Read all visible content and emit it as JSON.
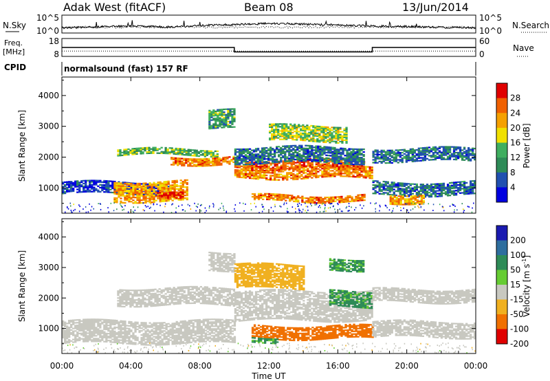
{
  "header": {
    "station": "Adak West (fitACF)",
    "beam": "Beam 08",
    "date": "13/Jun/2014"
  },
  "top_panels": {
    "nsky_label": "N.Sky",
    "nsearch_label": "N.Search",
    "noise_ticks": [
      "10^5",
      "10^0"
    ],
    "freq_label_1": "Freq.",
    "freq_label_2": "[MHz]",
    "freq_ticks": [
      "18",
      "8"
    ],
    "nave_label": "Nave",
    "nave_ticks": [
      "60",
      "0"
    ],
    "cpid_label": "CPID",
    "cpid_text": "normalsound (fast) 157 RF"
  },
  "power_panel": {
    "ylabel": "Slant Range [km]",
    "yticks": [
      "1000",
      "2000",
      "3000",
      "4000"
    ],
    "colorbar_label": "Power [dB]",
    "colorbar_ticks": [
      "4",
      "8",
      "12",
      "16",
      "20",
      "24",
      "28"
    ],
    "colors": [
      "#0000e0",
      "#2050b0",
      "#2e8b57",
      "#3fae5f",
      "#f0e000",
      "#f5a000",
      "#f06000",
      "#e00000"
    ]
  },
  "velocity_panel": {
    "ylabel": "Slant Range [km]",
    "yticks": [
      "1000",
      "2000",
      "3000",
      "4000"
    ],
    "colorbar_label": "Velocity [m s",
    "colorbar_label_sup": "-1",
    "colorbar_label_end": "]",
    "colorbar_ticks": [
      "200",
      "100",
      "50",
      "15",
      "-15",
      "-50",
      "-100",
      "-200"
    ],
    "colors": [
      "#1a1ab0",
      "#2e6e9e",
      "#2e8b57",
      "#66cc33",
      "#c8c8c0",
      "#f0b020",
      "#f07000",
      "#e00000"
    ]
  },
  "x_axis": {
    "label": "Time UT",
    "ticks": [
      "00:00",
      "04:00",
      "08:00",
      "12:00",
      "16:00",
      "20:00",
      "00:00"
    ]
  },
  "chart_data": [
    {
      "type": "heatmap",
      "title": "Power",
      "xlabel": "Time UT",
      "ylabel": "Slant Range [km]",
      "xlim": [
        0,
        24
      ],
      "ylim": [
        180,
        4600
      ],
      "colorbar": "Power [dB]",
      "bands": [
        {
          "t0": 0.0,
          "t1": 6.2,
          "r0": 800,
          "r1": 1200,
          "level": 4
        },
        {
          "t0": 3.0,
          "t1": 7.3,
          "r0": 550,
          "r1": 1200,
          "level": 22
        },
        {
          "t0": 5.5,
          "t1": 7.0,
          "r0": 600,
          "r1": 800,
          "level": 28
        },
        {
          "t0": 3.2,
          "t1": 9.0,
          "r0": 2050,
          "r1": 2250,
          "level": 14
        },
        {
          "t0": 6.3,
          "t1": 10.0,
          "r0": 1750,
          "r1": 2000,
          "level": 24
        },
        {
          "t0": 8.5,
          "t1": 10.0,
          "r0": 2900,
          "r1": 3500,
          "level": 12
        },
        {
          "t0": 10.0,
          "t1": 18.0,
          "r0": 1300,
          "r1": 1700,
          "level": 24
        },
        {
          "t0": 10.5,
          "t1": 17.5,
          "r0": 1600,
          "r1": 1900,
          "level": 26
        },
        {
          "t0": 10.0,
          "t1": 17.5,
          "r0": 1800,
          "r1": 2300,
          "level": 8
        },
        {
          "t0": 12.0,
          "t1": 16.5,
          "r0": 2500,
          "r1": 3000,
          "level": 16
        },
        {
          "t0": 11.0,
          "t1": 17.5,
          "r0": 550,
          "r1": 750,
          "level": 24
        },
        {
          "t0": 18.0,
          "t1": 24.0,
          "r0": 750,
          "r1": 1200,
          "level": 8
        },
        {
          "t0": 19.0,
          "t1": 21.0,
          "r0": 500,
          "r1": 800,
          "level": 22
        },
        {
          "t0": 18.0,
          "t1": 24.0,
          "r0": 1850,
          "r1": 2300,
          "level": 8
        }
      ]
    },
    {
      "type": "heatmap",
      "title": "Velocity",
      "xlabel": "Time UT",
      "ylabel": "Slant Range [km]",
      "xlim": [
        0,
        24
      ],
      "ylim": [
        180,
        4600
      ],
      "colorbar": "Velocity [m s-1]",
      "bands": [
        {
          "t0": 0.0,
          "t1": 10.0,
          "r0": 500,
          "r1": 1250,
          "level": 0
        },
        {
          "t0": 3.2,
          "t1": 10.0,
          "r0": 1750,
          "r1": 2300,
          "level": 0
        },
        {
          "t0": 8.5,
          "t1": 10.0,
          "r0": 2900,
          "r1": 3500,
          "level": 0
        },
        {
          "t0": 10.0,
          "t1": 18.0,
          "r0": 1250,
          "r1": 2200,
          "level": 0
        },
        {
          "t0": 10.0,
          "t1": 14.0,
          "r0": 2300,
          "r1": 3100,
          "level": -40
        },
        {
          "t0": 11.0,
          "t1": 18.0,
          "r0": 650,
          "r1": 1100,
          "level": -60
        },
        {
          "t0": 11.0,
          "t1": 12.5,
          "r0": 550,
          "r1": 700,
          "level": 30
        },
        {
          "t0": 15.5,
          "t1": 18.0,
          "r0": 1700,
          "r1": 2200,
          "level": 30
        },
        {
          "t0": 15.5,
          "t1": 17.5,
          "r0": 2900,
          "r1": 3300,
          "level": 30
        },
        {
          "t0": 18.0,
          "t1": 24.0,
          "r0": 700,
          "r1": 1200,
          "level": 0
        },
        {
          "t0": 18.0,
          "t1": 24.0,
          "r0": 1850,
          "r1": 2300,
          "level": 0
        }
      ]
    }
  ],
  "noise_series": {
    "nsky_level": [
      0.35,
      0.4,
      0.45,
      0.5,
      0.55,
      0.5,
      0.45,
      0.5,
      0.6,
      0.65,
      0.7,
      0.75,
      0.8,
      0.8,
      0.75,
      0.7,
      0.65,
      0.6,
      0.55,
      0.5,
      0.5,
      0.45,
      0.4,
      0.4,
      0.35
    ]
  },
  "freq_series": {
    "segments": [
      {
        "t0": 0,
        "t1": 10,
        "value": 13
      },
      {
        "t0": 10,
        "t1": 18,
        "value": 10.5
      },
      {
        "t0": 18,
        "t1": 24,
        "value": 13
      }
    ],
    "nave_value": 18
  }
}
